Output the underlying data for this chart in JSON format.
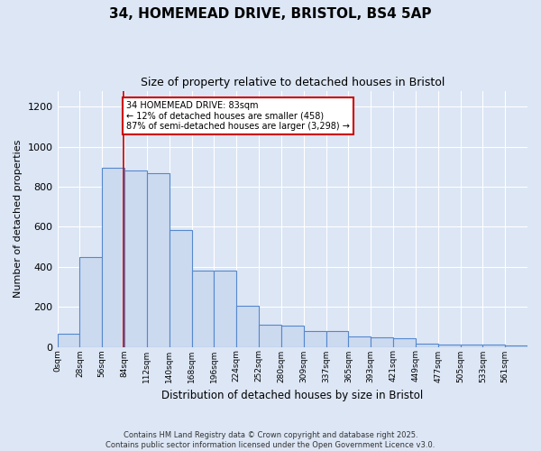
{
  "title": "34, HOMEMEAD DRIVE, BRISTOL, BS4 5AP",
  "subtitle": "Size of property relative to detached houses in Bristol",
  "xlabel": "Distribution of detached houses by size in Bristol",
  "ylabel": "Number of detached properties",
  "bar_values": [
    65,
    450,
    895,
    880,
    870,
    585,
    383,
    380,
    205,
    110,
    108,
    80,
    78,
    52,
    48,
    45,
    18,
    13,
    12,
    12,
    5
  ],
  "bin_labels": [
    "0sqm",
    "28sqm",
    "56sqm",
    "84sqm",
    "112sqm",
    "140sqm",
    "168sqm",
    "196sqm",
    "224sqm",
    "252sqm",
    "280sqm",
    "309sqm",
    "337sqm",
    "365sqm",
    "393sqm",
    "421sqm",
    "449sqm",
    "477sqm",
    "505sqm",
    "533sqm",
    "561sqm"
  ],
  "bar_color": "#ccdaf0",
  "bar_edge_color": "#5588cc",
  "background_color": "#dce6f5",
  "grid_color": "#ffffff",
  "vline_x": 83,
  "annotation_text": "34 HOMEMEAD DRIVE: 83sqm\n← 12% of detached houses are smaller (458)\n87% of semi-detached houses are larger (3,298) →",
  "annotation_box_color": "#ffffff",
  "annotation_box_edge": "#cc0000",
  "ylim": [
    0,
    1280
  ],
  "yticks": [
    0,
    200,
    400,
    600,
    800,
    1000,
    1200
  ],
  "footer_text": "Contains HM Land Registry data © Crown copyright and database right 2025.\nContains public sector information licensed under the Open Government Licence v3.0.",
  "bin_width": 28
}
